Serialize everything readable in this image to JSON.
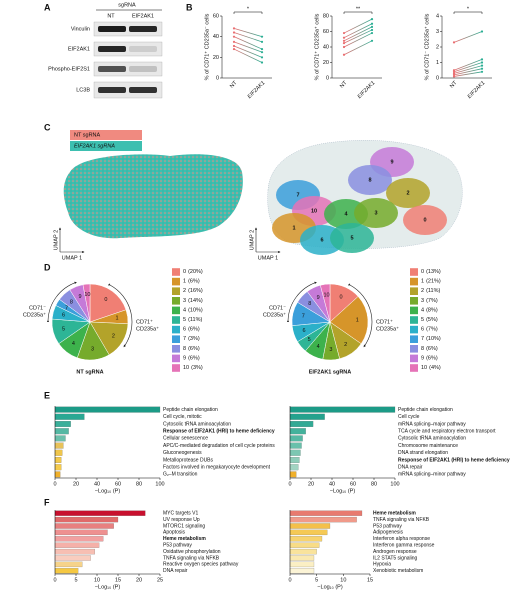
{
  "panel_labels": [
    "A",
    "B",
    "C",
    "D",
    "E",
    "F"
  ],
  "panel_a": {
    "header": "sgRNA",
    "lanes": [
      "NT",
      "EIF2AK1"
    ],
    "rows": [
      "Vinculin",
      "EIF2AK1",
      "Phospho-EIF2S1",
      "LC3B"
    ]
  },
  "panel_c": {
    "legend": [
      "NT sgRNA",
      "EIF2AK1 sgRNA"
    ],
    "legend_colors": [
      "#f08a80",
      "#3dbfb0"
    ],
    "axis_labels": [
      "UMAP 2",
      "UMAP 1"
    ],
    "cluster_labels": [
      "9",
      "8",
      "7",
      "2",
      "10",
      "4",
      "3",
      "0",
      "1",
      "6",
      "5"
    ]
  },
  "chart_data": [
    {
      "type": "line",
      "ylabel": "% of CD71⁺ CD235a⁻ cells",
      "categories": [
        "NT",
        "EIF2AK1"
      ],
      "significance": "*",
      "colors": [
        "#ea6d70",
        "#2aae93"
      ],
      "ylim": [
        0,
        60
      ],
      "yticks": [
        0,
        20,
        40,
        60
      ],
      "series": [
        {
          "values": [
            48,
            40
          ]
        },
        {
          "values": [
            44,
            35
          ]
        },
        {
          "values": [
            40,
            28
          ]
        },
        {
          "values": [
            35,
            25
          ]
        },
        {
          "values": [
            31,
            20
          ]
        },
        {
          "values": [
            28,
            15
          ]
        }
      ]
    },
    {
      "type": "line",
      "ylabel": "% of CD71⁺ CD235a⁺ cells",
      "categories": [
        "NT",
        "EIF2AK1"
      ],
      "significance": "**",
      "colors": [
        "#ea6d70",
        "#2aae93"
      ],
      "ylim": [
        0,
        80
      ],
      "yticks": [
        0,
        20,
        40,
        60,
        80
      ],
      "series": [
        {
          "values": [
            58,
            76
          ]
        },
        {
          "values": [
            52,
            70
          ]
        },
        {
          "values": [
            48,
            66
          ]
        },
        {
          "values": [
            45,
            62
          ]
        },
        {
          "values": [
            40,
            58
          ]
        },
        {
          "values": [
            30,
            48
          ]
        }
      ]
    },
    {
      "type": "line",
      "ylabel": "% of CD71⁻ CD235a⁺ cells",
      "categories": [
        "NT",
        "EIF2AK1"
      ],
      "significance": "*",
      "colors": [
        "#ea6d70",
        "#2aae93"
      ],
      "ylim": [
        0,
        4
      ],
      "yticks": [
        0,
        1,
        2,
        3,
        4
      ],
      "series": [
        {
          "values": [
            2.3,
            3.0
          ]
        },
        {
          "values": [
            0.5,
            1.2
          ]
        },
        {
          "values": [
            0.4,
            1.0
          ]
        },
        {
          "values": [
            0.3,
            0.8
          ]
        },
        {
          "values": [
            0.2,
            0.6
          ]
        },
        {
          "values": [
            0.1,
            0.4
          ]
        }
      ]
    },
    {
      "type": "pie",
      "title": "NT sgRNA",
      "categories": [
        "0",
        "1",
        "2",
        "3",
        "4",
        "5",
        "6",
        "7",
        "8",
        "9",
        "10"
      ],
      "values": [
        20,
        6,
        16,
        14,
        10,
        11,
        6,
        3,
        6,
        6,
        3
      ],
      "value_labels": [
        "(20%)",
        "(6%)",
        "(16%)",
        "(14%)",
        "(10%)",
        "(11%)",
        "(6%)",
        "(3%)",
        "(6%)",
        "(6%)",
        "(3%)"
      ],
      "colors": [
        "#f07f74",
        "#d6952a",
        "#b3a32a",
        "#76ab2c",
        "#3db24c",
        "#2db596",
        "#2bb0c9",
        "#3b9fdb",
        "#8a8fe0",
        "#c57ad8",
        "#e573b7"
      ],
      "annotations": [
        [
          "CD71⁻",
          "CD235a⁺"
        ],
        [
          "CD71⁺",
          "CD235a⁺"
        ]
      ]
    },
    {
      "type": "pie",
      "title": "EIF2AK1 sgRNA",
      "categories": [
        "0",
        "1",
        "2",
        "3",
        "4",
        "5",
        "6",
        "7",
        "8",
        "9",
        "10"
      ],
      "values": [
        13,
        21,
        11,
        7,
        8,
        5,
        7,
        10,
        6,
        6,
        4
      ],
      "value_labels": [
        "(13%)",
        "(21%)",
        "(11%)",
        "(7%)",
        "(8%)",
        "(5%)",
        "(7%)",
        "(10%)",
        "(6%)",
        "(6%)",
        "(4%)"
      ],
      "colors": [
        "#f07f74",
        "#d6952a",
        "#b3a32a",
        "#76ab2c",
        "#3db24c",
        "#2db596",
        "#2bb0c9",
        "#3b9fdb",
        "#8a8fe0",
        "#c57ad8",
        "#e573b7"
      ],
      "annotations": [
        [
          "CD71⁻",
          "CD235a⁺"
        ],
        [
          "CD71⁺",
          "CD235a⁺"
        ]
      ]
    },
    {
      "type": "bar",
      "orientation": "horizontal",
      "xlabel": "−Log₁₀ (P)",
      "xlim": [
        0,
        100
      ],
      "xticks": [
        0,
        20,
        40,
        60,
        80,
        100
      ],
      "highlight": [
        3
      ],
      "categories": [
        "Peptide chain elongation",
        "Cell cycle, mitotic",
        "Cytosolic tRNA aminoacylation",
        "Response of EIF2AK1 (HRI) to heme deficiency",
        "Cellular senescence",
        "APC/C-mediated degradation of cell cycle proteins",
        "Gluconeogenesis",
        "Metalloprotease DUBs",
        "Factors involved in megakaryocyte development",
        "G₂–M transition"
      ],
      "values": [
        100,
        28,
        15,
        13,
        10,
        8,
        7,
        6,
        6,
        5
      ],
      "colors": [
        "#1c9b87",
        "#2aa893",
        "#3aaf9a",
        "#55b8a3",
        "#6cc0ab",
        "#e8c25a",
        "#f0c64b",
        "#f3c94a",
        "#f5cb4c",
        "#f0b02a"
      ]
    },
    {
      "type": "bar",
      "orientation": "horizontal",
      "xlabel": "−Log₁₀ (P)",
      "xlim": [
        0,
        100
      ],
      "xticks": [
        0,
        20,
        40,
        60,
        80,
        100
      ],
      "highlight": [
        7
      ],
      "categories": [
        "Peptide chain elongation",
        "Cell cycle",
        "mRNA splicing–major pathway",
        "TCA cycle and respiratory electron transport",
        "Cytosolic tRNA aminoacylation",
        "Chromosome maintenance",
        "DNA strand elongation",
        "Response of EIF2AK1 (HRI) to heme deficiency",
        "DNA repair",
        "mRNA splicing–minor pathway"
      ],
      "values": [
        100,
        33,
        22,
        15,
        12,
        11,
        10,
        9,
        8,
        6
      ],
      "colors": [
        "#1c9b87",
        "#24a28d",
        "#32aa95",
        "#44b29c",
        "#56b9a4",
        "#69c0ab",
        "#7cc7b2",
        "#8ecdb9",
        "#a2d4c2",
        "#f0b02a"
      ]
    },
    {
      "type": "bar",
      "orientation": "horizontal",
      "xlabel": "−Log₁₀ (P)",
      "xlim": [
        0,
        25
      ],
      "xticks": [
        0,
        5,
        10,
        15,
        20,
        25
      ],
      "highlight": [
        4
      ],
      "categories": [
        "MYC targets V1",
        "UV response Up",
        "MTORC1 signaling",
        "Apoptosis",
        "Heme metabolism",
        "P53 pathway",
        "Oxidative phosphorylation",
        "TNFA signaling via NFKB",
        "Reactive oxygen species pathway",
        "DNA repair"
      ],
      "values": [
        21.5,
        15,
        14,
        12.5,
        11.5,
        10.5,
        9.5,
        8.5,
        6.5,
        5.5
      ],
      "colors": [
        "#c8102e",
        "#e06a6a",
        "#e88080",
        "#ee9090",
        "#f2a0a0",
        "#f5b0a8",
        "#f7bfb3",
        "#f9cdbf",
        "#f6d38a",
        "#f5c842"
      ]
    },
    {
      "type": "bar",
      "orientation": "horizontal",
      "xlabel": "−Log₁₀ (P)",
      "xlim": [
        0,
        15
      ],
      "xticks": [
        0,
        5,
        10,
        15
      ],
      "highlight": [
        0
      ],
      "categories": [
        "Heme metabolism",
        "TNFA signaling via NFKB",
        "P53 pathway",
        "Adipogenesis",
        "Interferon alpha response",
        "Interferon gamma response",
        "Androgen response",
        "IL2 STAT5 signaling",
        "Hypoxia",
        "Xenobiotic metabolism"
      ],
      "values": [
        13.5,
        12.5,
        7.5,
        7,
        6,
        5.5,
        5,
        4.5,
        4.5,
        4.5
      ],
      "colors": [
        "#e87a6f",
        "#f09a8a",
        "#f4c04a",
        "#f5c955",
        "#f7d36e",
        "#f8dc86",
        "#f9e39c",
        "#fae9b0",
        "#fbefc4",
        "#fcf4d6"
      ]
    }
  ]
}
